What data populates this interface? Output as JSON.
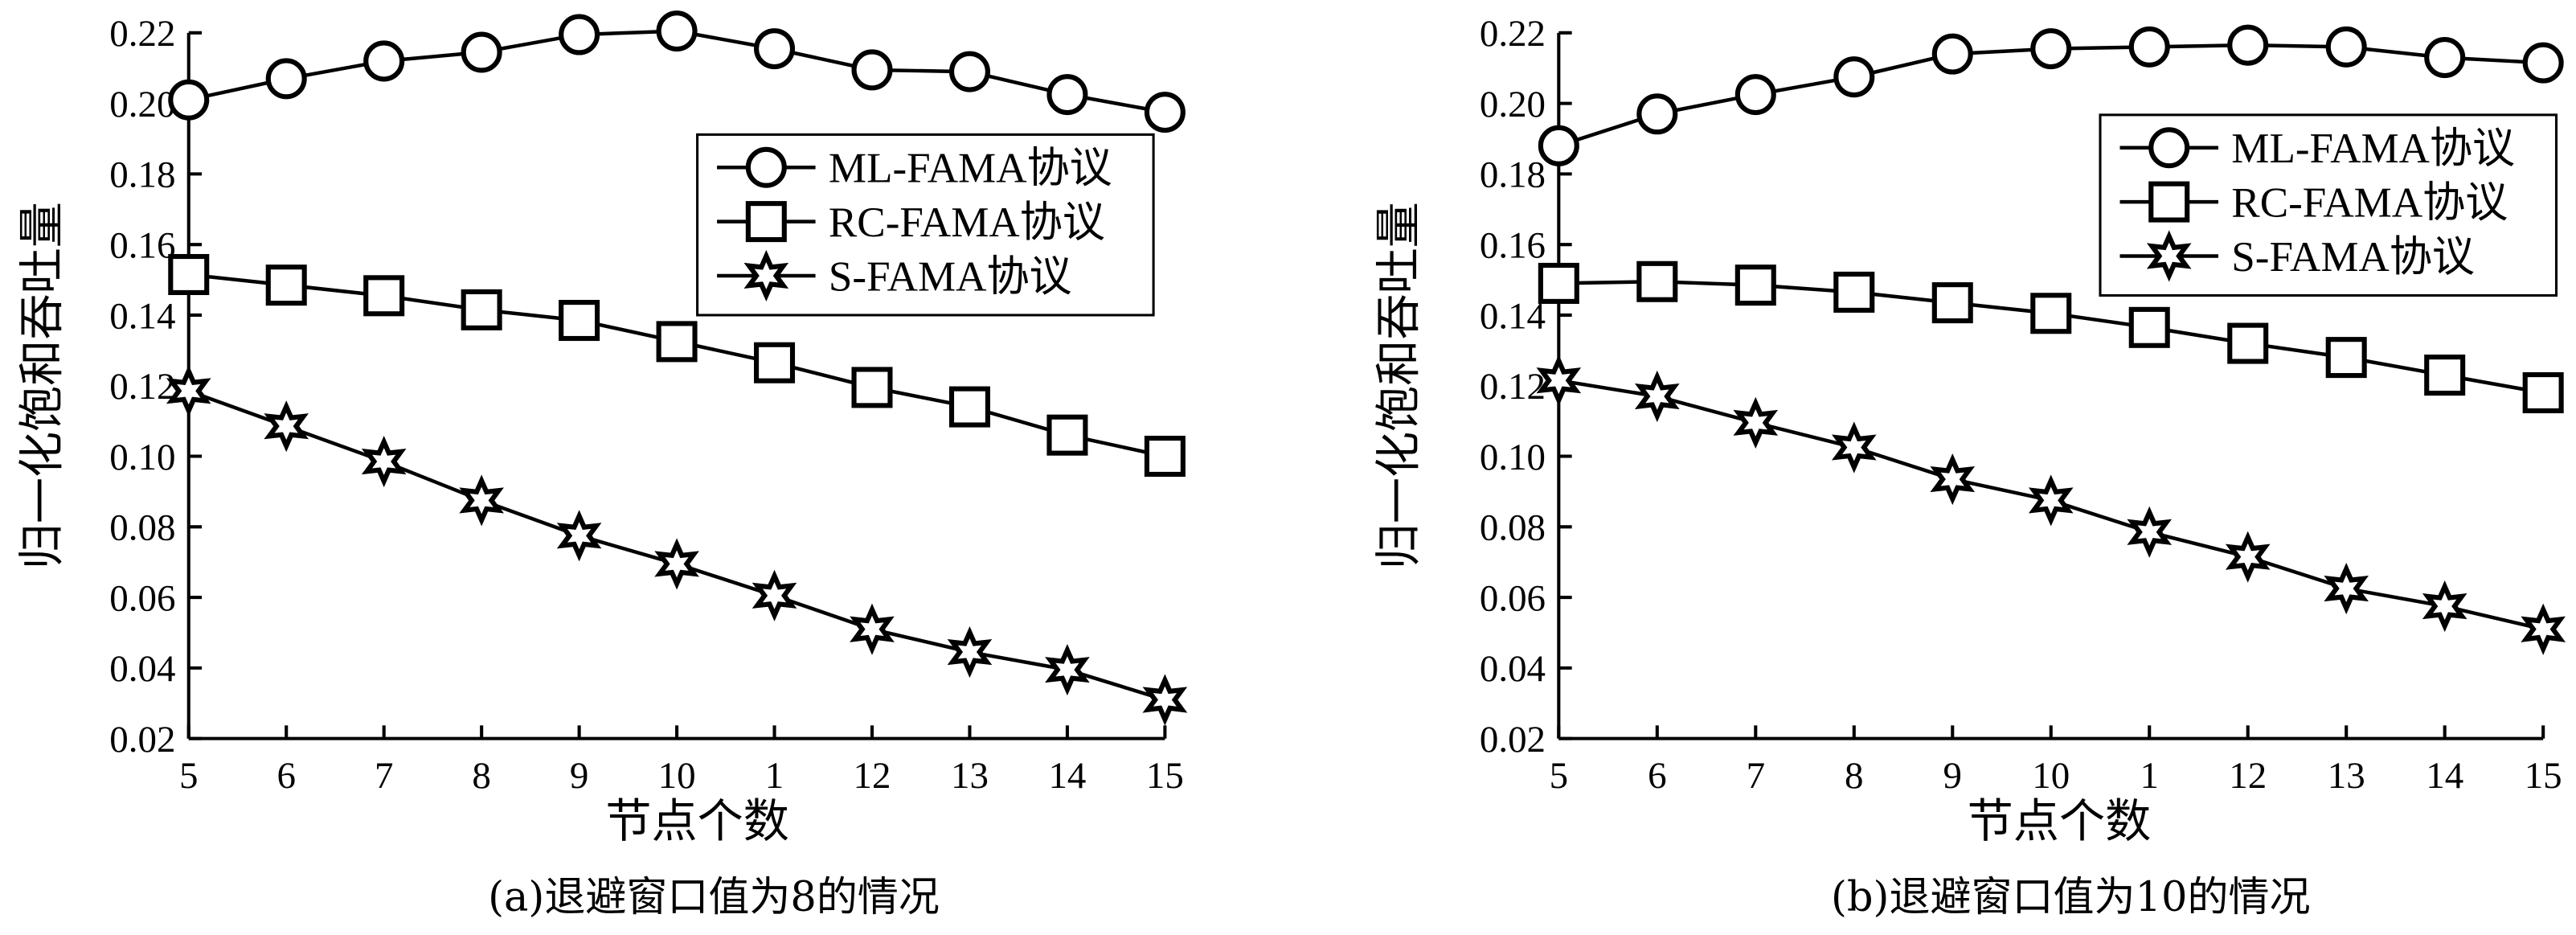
{
  "chart_data": [
    {
      "type": "line",
      "caption": "(a)退避窗口值为8的情况",
      "xlabel": "节点个数",
      "ylabel": "归一化饱和吞吐量",
      "categories": [
        "5",
        "6",
        "7",
        "8",
        "9",
        "10",
        "1",
        "12",
        "13",
        "14",
        "15"
      ],
      "ylim": [
        0.02,
        0.22
      ],
      "yticks": [
        "0.02",
        "0.04",
        "0.06",
        "0.08",
        "0.10",
        "0.12",
        "0.14",
        "0.16",
        "0.18",
        "0.20",
        "0.22"
      ],
      "grid": false,
      "legend_position": "top-right",
      "series": [
        {
          "name": "ML-FAMA协议",
          "marker": "circle",
          "values": [
            0.201,
            0.207,
            0.212,
            0.2145,
            0.2195,
            0.2205,
            0.2155,
            0.2095,
            0.209,
            0.2025,
            0.1975
          ]
        },
        {
          "name": "RC-FAMA协议",
          "marker": "square",
          "values": [
            0.1515,
            0.1485,
            0.1455,
            0.1415,
            0.1385,
            0.1325,
            0.1265,
            0.1195,
            0.114,
            0.106,
            0.1
          ]
        },
        {
          "name": "S-FAMA协议",
          "marker": "star",
          "values": [
            0.1185,
            0.1085,
            0.0985,
            0.0875,
            0.0775,
            0.0695,
            0.0605,
            0.051,
            0.0445,
            0.0395,
            0.031
          ]
        }
      ]
    },
    {
      "type": "line",
      "caption": "(b)退避窗口值为10的情况",
      "xlabel": "节点个数",
      "ylabel": "归一化饱和吞吐量",
      "categories": [
        "5",
        "6",
        "7",
        "8",
        "9",
        "10",
        "1",
        "12",
        "13",
        "14",
        "15"
      ],
      "ylim": [
        0.02,
        0.22
      ],
      "yticks": [
        "0.02",
        "0.04",
        "0.06",
        "0.08",
        "0.10",
        "0.12",
        "0.14",
        "0.16",
        "0.18",
        "0.20",
        "0.22"
      ],
      "grid": false,
      "legend_position": "top-right",
      "series": [
        {
          "name": "ML-FAMA协议",
          "marker": "circle",
          "values": [
            0.188,
            0.197,
            0.2025,
            0.2075,
            0.214,
            0.2155,
            0.216,
            0.2165,
            0.216,
            0.213,
            0.2115
          ]
        },
        {
          "name": "RC-FAMA协议",
          "marker": "square",
          "values": [
            0.149,
            0.1495,
            0.1485,
            0.1465,
            0.1435,
            0.1405,
            0.1365,
            0.132,
            0.128,
            0.123,
            0.118
          ]
        },
        {
          "name": "S-FAMA协议",
          "marker": "star",
          "values": [
            0.1215,
            0.117,
            0.1095,
            0.1025,
            0.0935,
            0.0875,
            0.0785,
            0.0715,
            0.0625,
            0.0575,
            0.051
          ]
        }
      ]
    }
  ]
}
